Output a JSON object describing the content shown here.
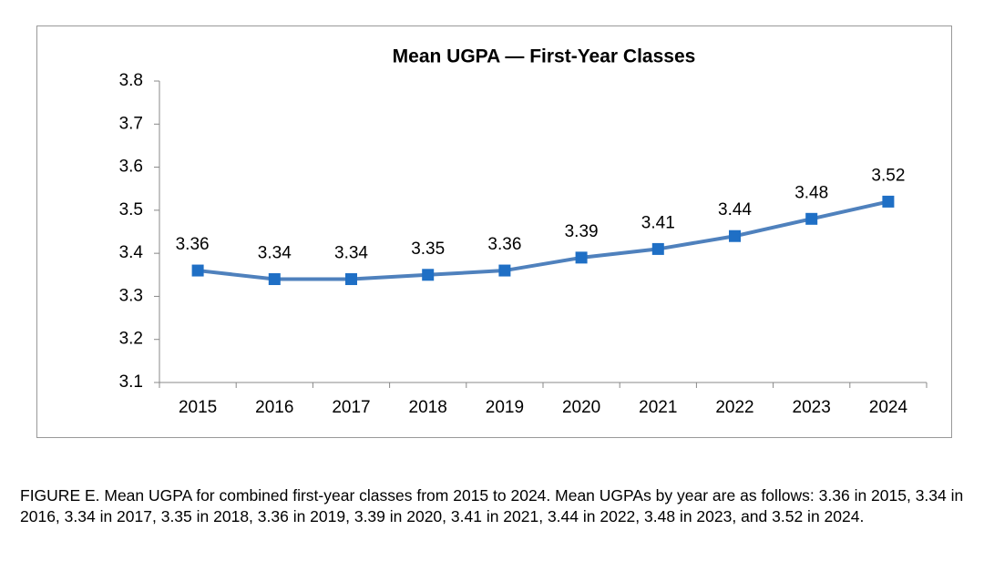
{
  "chart_data": {
    "type": "line",
    "title": "Mean UGPA — First-Year Classes",
    "categories": [
      "2015",
      "2016",
      "2017",
      "2018",
      "2019",
      "2020",
      "2021",
      "2022",
      "2023",
      "2024"
    ],
    "values": [
      3.36,
      3.34,
      3.34,
      3.35,
      3.36,
      3.39,
      3.41,
      3.44,
      3.48,
      3.52
    ],
    "color": "#4f81bd",
    "marker_color": "#1f6fc5",
    "ylim": [
      3.1,
      3.8
    ],
    "yticks": [
      3.1,
      3.2,
      3.3,
      3.4,
      3.5,
      3.6,
      3.7,
      3.8
    ],
    "grid": false
  },
  "caption": "FIGURE E. Mean UGPA for combined first-year classes from 2015 to 2024. Mean UGPAs by year are as follows: 3.36 in 2015, 3.34 in 2016, 3.34 in 2017, 3.35 in 2018, 3.36 in 2019, 3.39 in 2020, 3.41 in 2021, 3.44 in 2022, 3.48 in 2023, and 3.52 in 2024."
}
